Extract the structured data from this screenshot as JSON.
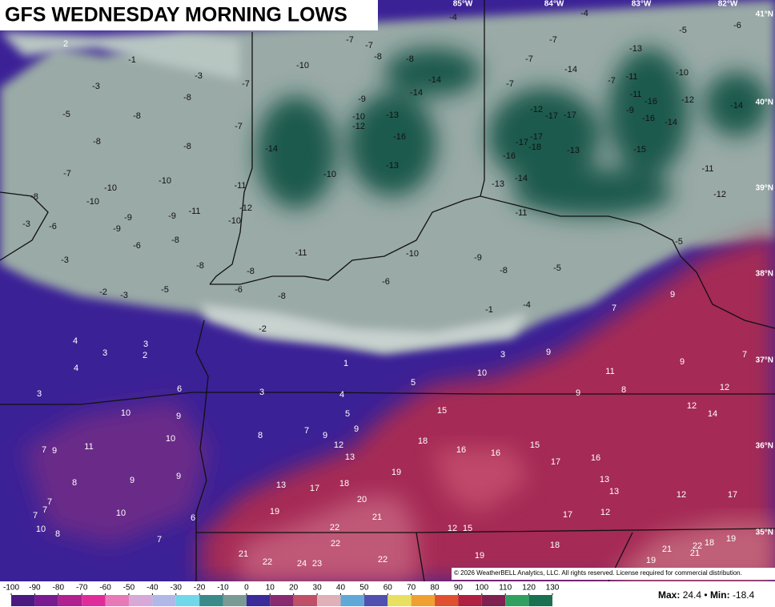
{
  "map": {
    "title": "GFS WEDNESDAY MORNING LOWS",
    "longitude_labels": [
      "85°W",
      "84°W",
      "83°W",
      "82°W"
    ],
    "latitude_labels": [
      "41°N",
      "40°N",
      "39°N",
      "38°N",
      "37°N",
      "36°N",
      "35°N"
    ],
    "station_lows": [
      2,
      -1,
      -3,
      -3,
      -7,
      -5,
      -8,
      -8,
      -8,
      -8,
      -7,
      -7,
      -10,
      -10,
      -8,
      -10,
      -11,
      -12,
      -11,
      -9,
      -9,
      -10,
      -3,
      -6,
      -9,
      -8,
      -6,
      -3,
      -8,
      -8,
      -2,
      -3,
      -5,
      -6,
      -8,
      -11,
      -7,
      -7,
      -8,
      -8,
      -10,
      -14,
      -14,
      -9,
      -10,
      -12,
      -13,
      -16,
      -14,
      -10,
      -13,
      -10,
      -6,
      -9,
      -8,
      -5,
      -1,
      -4,
      -2,
      -13,
      -14,
      -11,
      -16,
      -17,
      -18,
      -17,
      -12,
      -17,
      -17,
      -13,
      -7,
      -7,
      -7,
      -4,
      -4,
      -14,
      -13,
      -7,
      -11,
      -11,
      -9,
      -16,
      -16,
      -14,
      -12,
      -10,
      -15,
      -14,
      -11,
      -12,
      -5,
      -6,
      -5,
      4,
      3,
      3,
      2,
      4,
      6,
      3,
      3,
      4,
      1,
      5,
      3,
      10,
      9,
      7,
      9,
      9,
      11,
      7,
      8,
      9,
      12,
      12,
      14,
      10,
      9,
      10,
      8,
      7,
      9,
      5,
      9,
      12,
      13,
      15,
      18,
      16,
      16,
      15,
      17,
      16,
      11,
      7,
      9,
      8,
      9,
      9,
      13,
      17,
      18,
      19,
      20,
      21,
      19,
      10,
      6,
      7,
      7,
      7,
      10,
      8,
      7,
      22,
      22,
      21,
      22,
      24,
      23,
      22,
      12,
      15,
      19,
      18,
      17,
      13,
      13,
      12,
      12,
      17,
      21,
      22,
      21,
      18,
      19,
      19
    ],
    "copyright": "© 2026 WeatherBELL Analytics, LLC. All rights reserved. License required for commercial distribution.",
    "colorbar": {
      "ticks": [
        -100,
        -90,
        -80,
        -70,
        -60,
        -50,
        -40,
        -30,
        -20,
        -10,
        0,
        10,
        20,
        30,
        40,
        50,
        60,
        70,
        80,
        90,
        100,
        110,
        120,
        130
      ],
      "colors": [
        "#4a1a80",
        "#7a1a90",
        "#b0208f",
        "#e02c9a",
        "#e878b8",
        "#d8a8d8",
        "#b0b8e8",
        "#70d8e8",
        "#3a8a8a",
        "#7a9a96",
        "#3a2a9a",
        "#8a2a70",
        "#c05068",
        "#e0b0b8",
        "#60a8d8",
        "#5050b0",
        "#e8e060",
        "#f0a030",
        "#e05030",
        "#b02040",
        "#802050",
        "#30a060",
        "#1a7050"
      ]
    },
    "stats": {
      "max_label": "Max:",
      "max": 24.4,
      "separator": "•",
      "min_label": "Min:",
      "min": -18.4
    }
  }
}
